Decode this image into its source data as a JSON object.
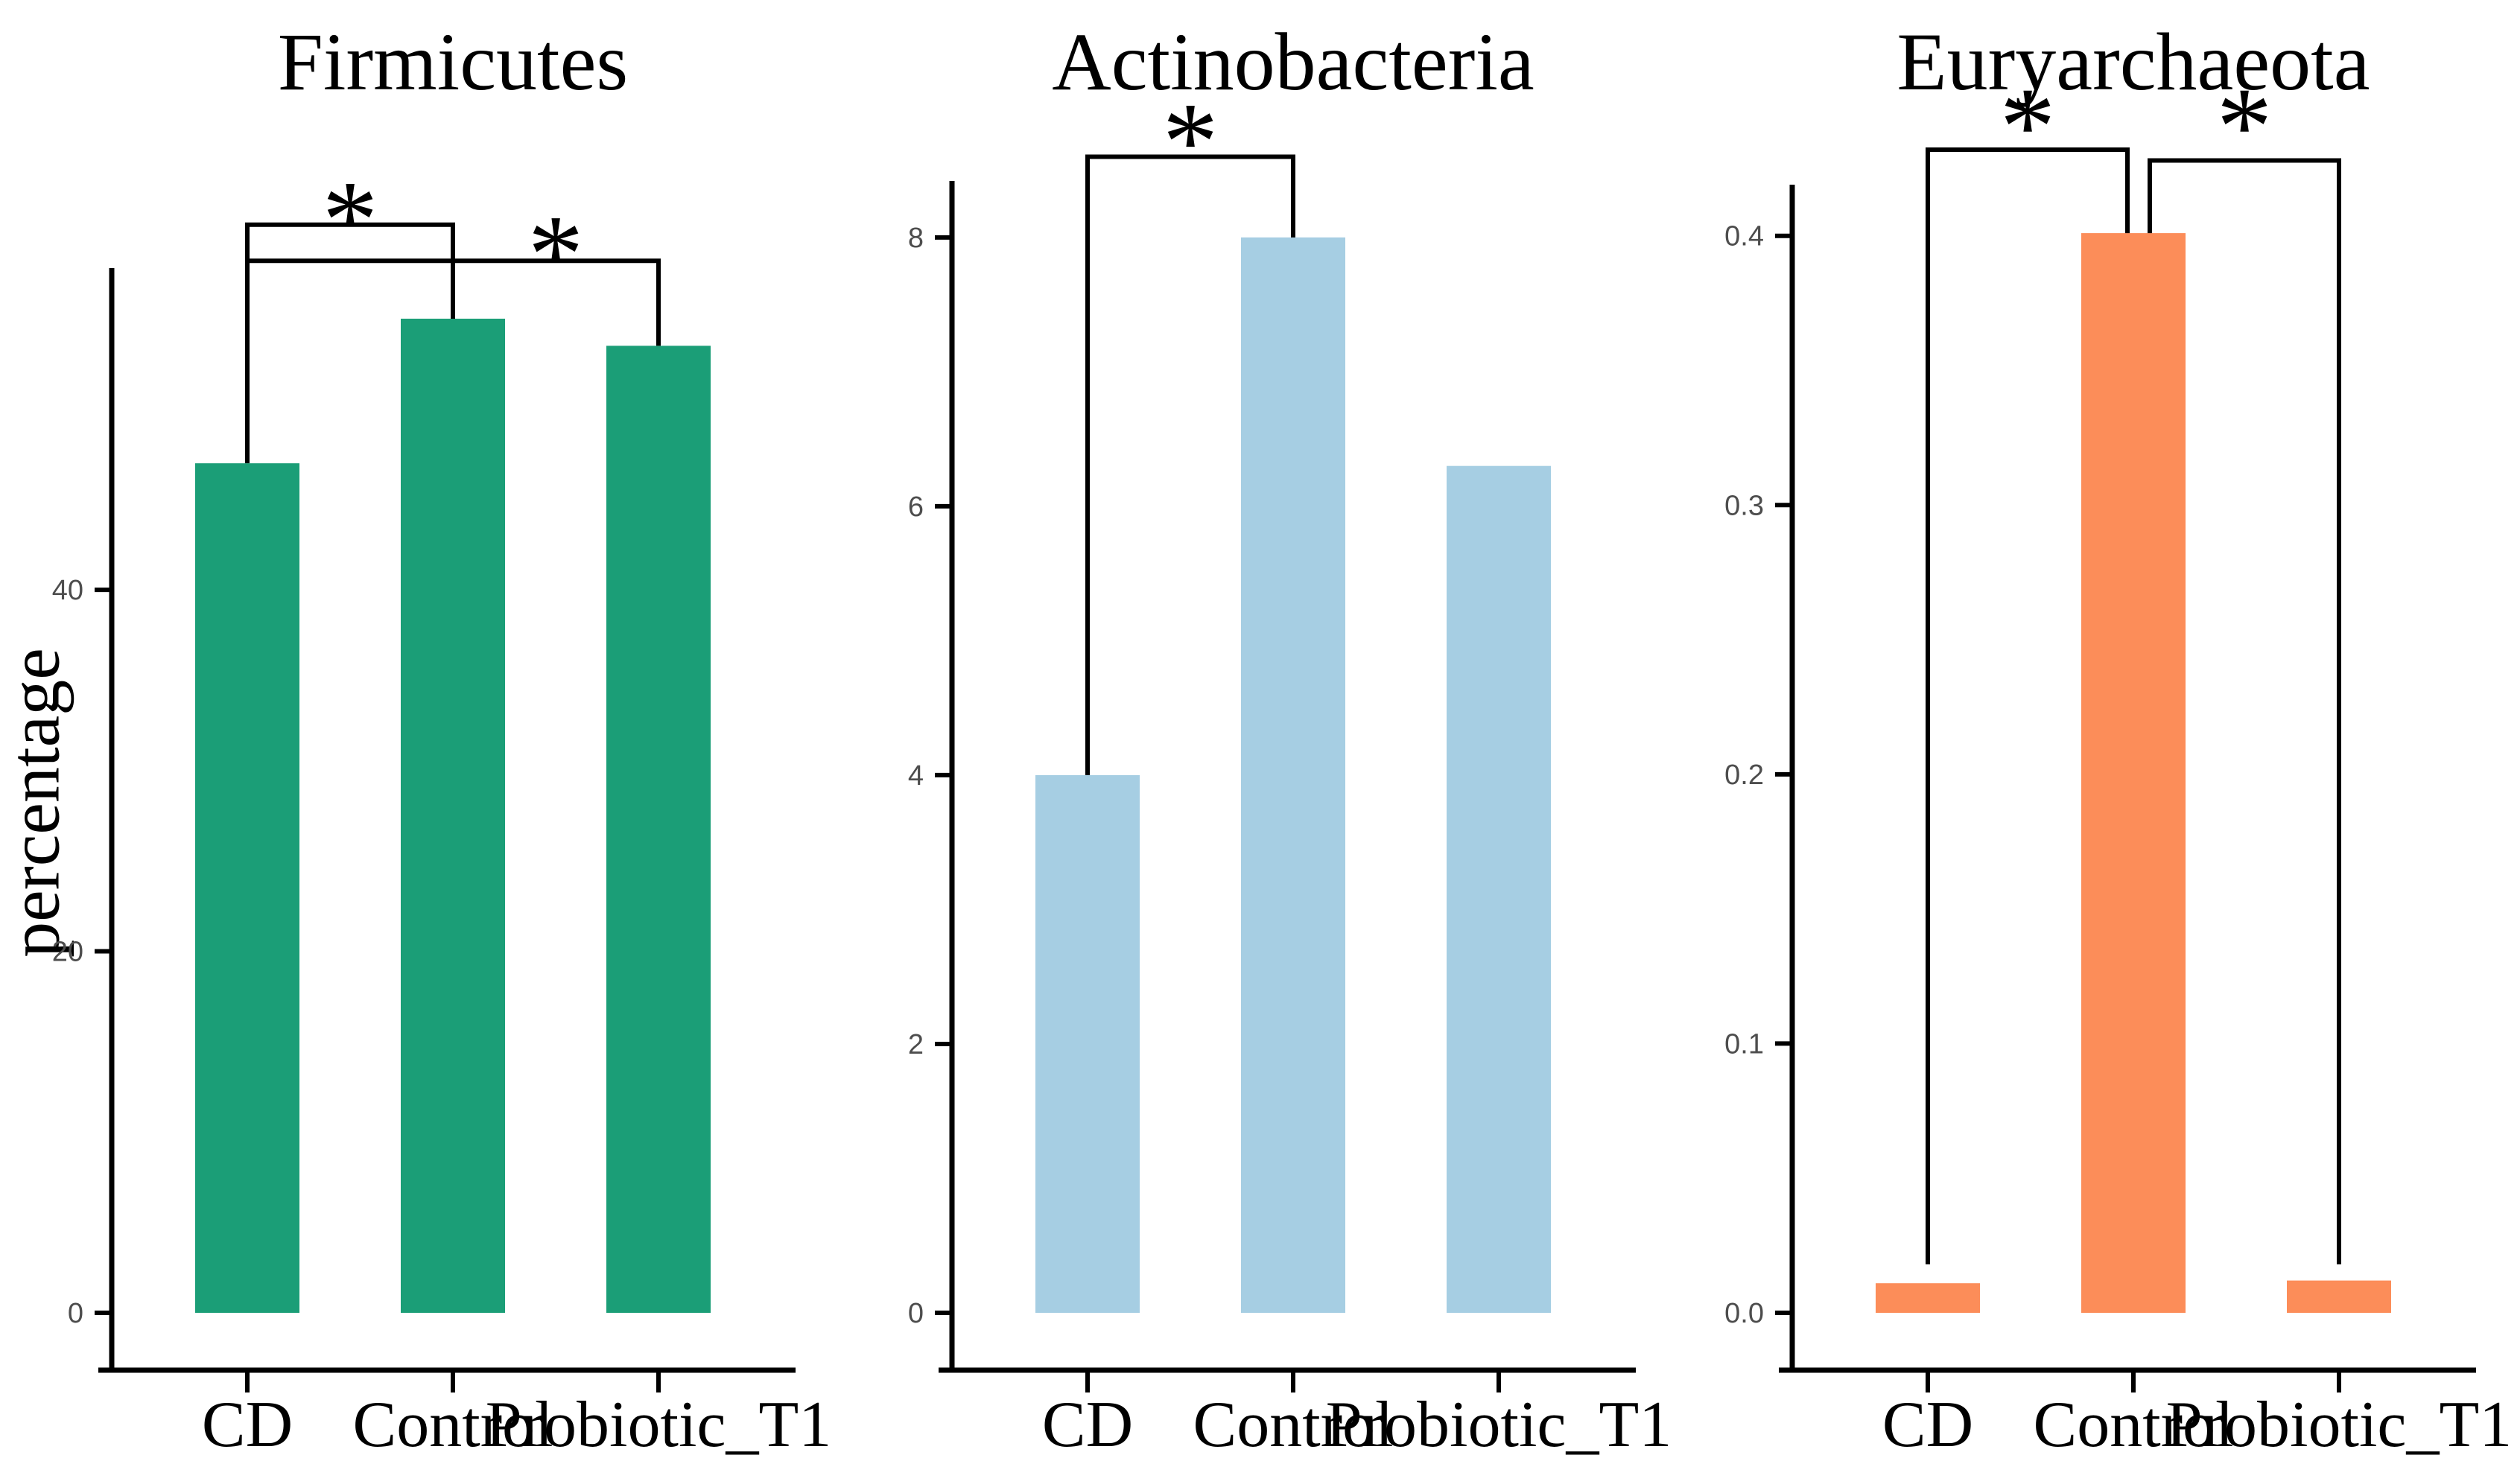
{
  "figure": {
    "y_axis_label": "percentage"
  },
  "chart_data": [
    {
      "type": "bar",
      "title": "Firmicutes",
      "categories": [
        "CD",
        "Control",
        "Probiotic_T1"
      ],
      "values": [
        47,
        55,
        53.5
      ],
      "bar_color": "#1B9E77",
      "ylabel": "percentage",
      "xlabel": "",
      "yticks": [
        0,
        20,
        40
      ],
      "ytick_labels": [
        "0",
        "20",
        "40"
      ],
      "ylim": [
        0,
        57.8
      ],
      "grid": "off",
      "significance": [
        {
          "x1": "CD",
          "x2": "Control",
          "level": 60.2,
          "drop1": 47,
          "drop2": 55,
          "star": "*",
          "star_level": 61.5
        },
        {
          "x1": "CD",
          "x2": "Probiotic_T1",
          "level": 58.2,
          "drop1": null,
          "drop2": 53.5,
          "star": "*",
          "star_level": 59.6,
          "star_between": [
            "Control",
            "Probiotic_T1"
          ]
        }
      ]
    },
    {
      "type": "bar",
      "title": "Actinobacteria",
      "categories": [
        "CD",
        "Control",
        "Probiotic_T1"
      ],
      "values": [
        4.0,
        8.0,
        6.3
      ],
      "bar_color": "#A6CEE3",
      "ylabel": "",
      "xlabel": "",
      "yticks": [
        0,
        2,
        4,
        6,
        8
      ],
      "ytick_labels": [
        "0",
        "2",
        "4",
        "6",
        "8"
      ],
      "ylim": [
        0,
        8.42
      ],
      "grid": "off",
      "significance": [
        {
          "x1": "CD",
          "x2": "Control",
          "level": 8.6,
          "drop1": 4.0,
          "drop2": 8.0,
          "star": "*",
          "star_level": 8.85
        }
      ]
    },
    {
      "type": "bar",
      "title": "Euryarchaeota",
      "categories": [
        "CD",
        "Control",
        "Probiotic_T1"
      ],
      "values": [
        0.011,
        0.401,
        0.012
      ],
      "bar_color": "#FC8D59",
      "ylabel": "",
      "xlabel": "",
      "yticks": [
        0.0,
        0.1,
        0.2,
        0.3,
        0.4
      ],
      "ytick_labels": [
        "0.0",
        "0.1",
        "0.2",
        "0.3",
        "0.4"
      ],
      "ylim": [
        0,
        0.419
      ],
      "grid": "off",
      "significance": [
        {
          "x1": "CD",
          "x2": "Control",
          "level": 0.432,
          "drop1": 0.018,
          "drop2": 0.401,
          "x2_dx": -8,
          "star": "*",
          "star_level": 0.4475
        },
        {
          "x1": "Control",
          "x2": "Probiotic_T1",
          "level": 0.428,
          "drop1": 0.401,
          "drop2": 0.018,
          "x1_dx": 22,
          "star": "*",
          "star_level": 0.4475
        }
      ]
    }
  ]
}
